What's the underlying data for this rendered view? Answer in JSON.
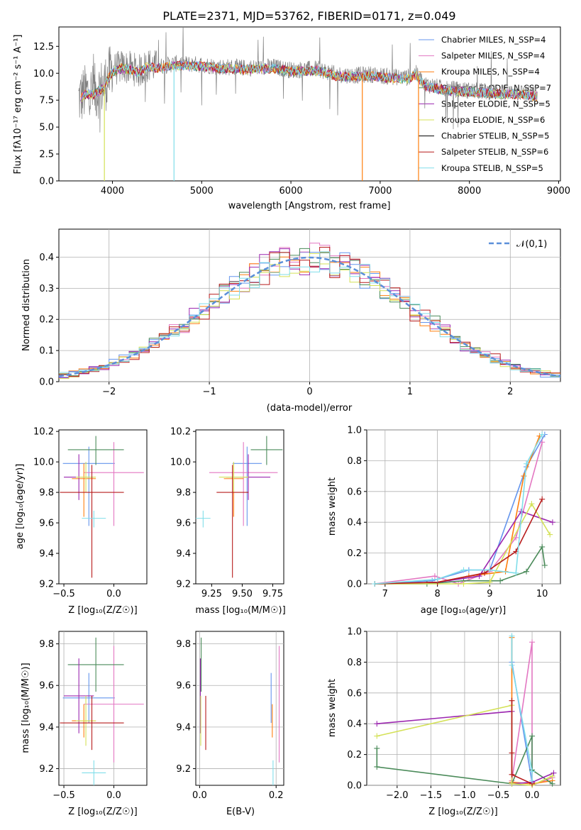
{
  "figure": {
    "title": "PLATE=2371, MJD=53762, FIBERID=0171, z=0.049"
  },
  "chart_data": [
    {
      "id": "spectrum",
      "type": "line",
      "xlabel": "wavelength [Angstrom, rest frame]",
      "ylabel": "Flux [fλ10⁻¹⁷ erg cm⁻² s⁻¹ A⁻¹]",
      "xlim": [
        3400,
        9020
      ],
      "ylim": [
        0,
        14.3
      ],
      "xticks": [
        4000,
        5000,
        6000,
        7000,
        8000,
        9000
      ],
      "yticks": [
        0.0,
        2.5,
        5.0,
        7.5,
        10.0,
        12.5
      ],
      "legend_position": "top-right",
      "series": [
        {
          "name": "Chabrier MILES, N_SSP=4",
          "color": "#6495ed"
        },
        {
          "name": "Salpeter MILES, N_SSP=4",
          "color": "#e377c2"
        },
        {
          "name": "Kroupa MILES, N_SSP=4",
          "color": "#ff7f0e"
        },
        {
          "name": "Chabrier ELODIE, N_SSP=7",
          "color": "#4b8b5a"
        },
        {
          "name": "Salpeter ELODIE, N_SSP=5",
          "color": "#9c27b0"
        },
        {
          "name": "Kroupa ELODIE, N_SSP=6",
          "color": "#d4e157"
        },
        {
          "name": "Chabrier STELIB, N_SSP=5",
          "color": "#000000"
        },
        {
          "name": "Salpeter STELIB, N_SSP=6",
          "color": "#b71c1c"
        },
        {
          "name": "Kroupa STELIB, N_SSP=5",
          "color": "#80deea"
        }
      ],
      "data_color": "#808080",
      "continuum": {
        "x": [
          3620,
          3700,
          3800,
          3900,
          4000,
          4100,
          4200,
          4300,
          4400,
          4500,
          4700,
          5000,
          5200,
          5500,
          5800,
          6000,
          6300,
          6500,
          6700,
          6900,
          7100,
          7300,
          7400,
          7500,
          7700,
          8000,
          8200,
          8400,
          8600,
          8750
        ],
        "y": [
          7.6,
          8.2,
          8.2,
          8.8,
          10.3,
          10.6,
          10.5,
          10.2,
          10.8,
          10.6,
          10.9,
          10.8,
          10.6,
          10.5,
          10.6,
          10.3,
          10.4,
          9.9,
          9.8,
          9.9,
          9.7,
          9.6,
          10.0,
          9.0,
          8.6,
          8.4,
          8.3,
          8.2,
          8.2,
          8.0
        ]
      }
    },
    {
      "id": "residuals",
      "type": "line",
      "xlabel": "(data-model)/error",
      "ylabel": "Normed distribution",
      "xlim": [
        -2.5,
        2.5
      ],
      "ylim": [
        0,
        0.49
      ],
      "xticks": [
        -2,
        -1,
        0,
        1,
        2
      ],
      "yticks": [
        0.0,
        0.1,
        0.2,
        0.3,
        0.4
      ],
      "legend": "𝒩(0,1)",
      "legend_position": "top-right",
      "bins": {
        "start": -2.5,
        "width": 0.1,
        "count": 50
      }
    },
    {
      "id": "age-vs-Z",
      "type": "scatter",
      "xlabel": "Z [log₁₀(Z/Z☉)]",
      "ylabel": "age  [log₁₀(age/yr)]",
      "xlim": [
        -0.55,
        0.33
      ],
      "ylim": [
        9.2,
        10.21
      ],
      "xticks": [
        -0.5,
        0.0
      ],
      "yticks": [
        9.2,
        9.4,
        9.6,
        9.8,
        10.0,
        10.2
      ]
    },
    {
      "id": "age-vs-mass",
      "type": "scatter",
      "xlabel": "mass [log₁₀(M/M☉)]",
      "ylabel": "",
      "xlim": [
        9.12,
        9.84
      ],
      "ylim": [
        9.2,
        10.21
      ],
      "xticks": [
        9.25,
        9.5,
        9.75
      ],
      "yticks": [
        9.2,
        9.4,
        9.6,
        9.8,
        10.0,
        10.2
      ]
    },
    {
      "id": "massweight-vs-age",
      "type": "line",
      "xlabel": "age  [log₁₀(age/yr)]",
      "ylabel": "mass weight",
      "xlim": [
        6.65,
        10.35
      ],
      "ylim": [
        0,
        1.0
      ],
      "xticks": [
        7,
        8,
        9,
        10
      ],
      "yticks": [
        0.0,
        0.2,
        0.4,
        0.6,
        0.8,
        1.0
      ]
    },
    {
      "id": "mass-vs-Z",
      "type": "scatter",
      "xlabel": "Z [log₁₀(Z/Z☉)]",
      "ylabel": "mass [log₁₀(M/M☉)]",
      "xlim": [
        -0.55,
        0.33
      ],
      "ylim": [
        9.12,
        9.86
      ],
      "xticks": [
        -0.5,
        0.0
      ],
      "yticks": [
        9.2,
        9.4,
        9.6,
        9.8
      ]
    },
    {
      "id": "mass-vs-ebv",
      "type": "scatter",
      "xlabel": "E(B-V)",
      "ylabel": "",
      "xlim": [
        -0.01,
        0.22
      ],
      "ylim": [
        9.12,
        9.86
      ],
      "xticks": [
        0.0,
        0.2
      ],
      "yticks": [
        9.2,
        9.4,
        9.6,
        9.8
      ]
    },
    {
      "id": "massweight-vs-Z",
      "type": "line",
      "xlabel": "Z [log₁₀(Z/Z☉)]",
      "ylabel": "mass weight",
      "xlim": [
        -2.45,
        0.42
      ],
      "ylim": [
        0,
        1.0
      ],
      "xticks": [
        -2.0,
        -1.5,
        -1.0,
        -0.5,
        0.0
      ],
      "yticks": [
        0.0,
        0.2,
        0.4,
        0.6,
        0.8,
        1.0
      ]
    }
  ],
  "models": [
    {
      "color": "#6495ed",
      "Z": -0.25,
      "Zerr": 0.26,
      "age": 9.99,
      "ageerr": [
        0.41,
        0.11
      ],
      "mass": 9.54,
      "masserr": 0.12,
      "ebv": 0.187,
      "age_mw": [
        [
          6.8,
          0.0
        ],
        [
          7.9,
          0.02
        ],
        [
          8.6,
          0.09
        ],
        [
          9.0,
          0.09
        ],
        [
          9.7,
          0.76
        ],
        [
          10.05,
          0.97
        ]
      ],
      "Z_mw": [
        [
          -0.3,
          0.97
        ],
        [
          -0.3,
          0.8
        ],
        [
          0.0,
          0.02
        ],
        [
          0.0,
          0.0
        ]
      ]
    },
    {
      "color": "#e377c2",
      "Z": 0.0,
      "Zerr": 0.3,
      "age": 9.93,
      "ageerr": [
        0.35,
        0.2
      ],
      "mass": 9.51,
      "masserr": 0.28,
      "ebv": 0.208,
      "age_mw": [
        [
          6.8,
          0.0
        ],
        [
          7.95,
          0.05
        ],
        [
          8.4,
          0.0
        ],
        [
          9.0,
          0.08
        ],
        [
          9.5,
          0.3
        ],
        [
          10.0,
          0.92
        ]
      ],
      "Z_mw": [
        [
          -0.3,
          0.03
        ],
        [
          0.0,
          0.93
        ],
        [
          0.0,
          0.0
        ],
        [
          0.3,
          0.05
        ]
      ]
    },
    {
      "color": "#ff7f0e",
      "Z": -0.3,
      "Zerr": 0.12,
      "age": 9.89,
      "ageerr": [
        0.25,
        0.1
      ],
      "mass": 9.43,
      "masserr": 0.08,
      "ebv": 0.19,
      "age_mw": [
        [
          6.8,
          0.0
        ],
        [
          8.0,
          0.01
        ],
        [
          8.6,
          0.05
        ],
        [
          9.3,
          0.08
        ],
        [
          9.65,
          0.7
        ],
        [
          9.95,
          0.96
        ]
      ],
      "Z_mw": [
        [
          -0.3,
          0.96
        ],
        [
          -0.3,
          0.02
        ],
        [
          0.0,
          0.01
        ],
        [
          0.3,
          0.03
        ]
      ]
    },
    {
      "color": "#4b8b5a",
      "Z": -0.18,
      "Zerr": 0.28,
      "age": 10.08,
      "ageerr": [
        0.1,
        0.09
      ],
      "mass": 9.7,
      "masserr": 0.13,
      "ebv": 0.004,
      "age_mw": [
        [
          6.8,
          0.0
        ],
        [
          7.8,
          0.0
        ],
        [
          8.5,
          0.02
        ],
        [
          9.2,
          0.02
        ],
        [
          9.7,
          0.08
        ],
        [
          10.0,
          0.24
        ],
        [
          10.05,
          0.12
        ]
      ],
      "Z_mw": [
        [
          -2.3,
          0.24
        ],
        [
          -2.3,
          0.12
        ],
        [
          -0.3,
          0.01
        ],
        [
          0.0,
          0.32
        ],
        [
          0.0,
          0.1
        ],
        [
          0.3,
          0.01
        ]
      ]
    },
    {
      "color": "#9c27b0",
      "Z": -0.35,
      "Zerr": 0.15,
      "age": 9.9,
      "ageerr": [
        0.15,
        0.15
      ],
      "mass": 9.55,
      "masserr": 0.18,
      "ebv": 0.002,
      "age_mw": [
        [
          6.8,
          0.0
        ],
        [
          8.0,
          0.01
        ],
        [
          8.8,
          0.05
        ],
        [
          9.6,
          0.47
        ],
        [
          10.2,
          0.4
        ]
      ],
      "Z_mw": [
        [
          -2.3,
          0.4
        ],
        [
          -0.3,
          0.48
        ],
        [
          -0.3,
          0.01
        ],
        [
          0.0,
          0.02
        ],
        [
          0.32,
          0.08
        ]
      ]
    },
    {
      "color": "#d4e157",
      "Z": -0.28,
      "Zerr": 0.1,
      "age": 9.9,
      "ageerr": [
        0.1,
        0.1
      ],
      "mass": 9.43,
      "masserr": 0.12,
      "ebv": 0.003,
      "age_mw": [
        [
          6.8,
          0.0
        ],
        [
          8.5,
          0.0
        ],
        [
          9.0,
          0.01
        ],
        [
          9.8,
          0.52
        ],
        [
          10.15,
          0.32
        ]
      ],
      "Z_mw": [
        [
          -2.3,
          0.32
        ],
        [
          -0.3,
          0.52
        ],
        [
          -0.3,
          0.01
        ],
        [
          0.0,
          0.0
        ],
        [
          0.3,
          0.06
        ]
      ]
    },
    {
      "color": "#b71c1c",
      "Z": -0.22,
      "Zerr": 0.32,
      "age": 9.8,
      "ageerr": [
        0.56,
        0.18
      ],
      "mass": 9.42,
      "masserr": 0.13,
      "ebv": 0.016,
      "age_mw": [
        [
          6.8,
          0.0
        ],
        [
          8.0,
          0.01
        ],
        [
          8.9,
          0.07
        ],
        [
          9.5,
          0.21
        ],
        [
          10.0,
          0.55
        ]
      ],
      "Z_mw": [
        [
          -0.3,
          0.55
        ],
        [
          -0.3,
          0.21
        ],
        [
          -0.3,
          0.07
        ],
        [
          0.0,
          0.01
        ]
      ]
    },
    {
      "color": "#80deea",
      "Z": -0.2,
      "Zerr": 0.12,
      "age": 9.63,
      "ageerr": [
        0.06,
        0.05
      ],
      "mass": 9.18,
      "masserr": 0.06,
      "ebv": 0.192,
      "age_mw": [
        [
          6.8,
          0.0
        ],
        [
          8.0,
          0.03
        ],
        [
          8.5,
          0.09
        ],
        [
          9.0,
          0.09
        ],
        [
          9.5,
          0.07
        ],
        [
          9.7,
          0.78
        ],
        [
          10.0,
          0.97
        ]
      ],
      "Z_mw": [
        [
          -0.3,
          0.97
        ],
        [
          -0.3,
          0.78
        ],
        [
          0.0,
          0.09
        ],
        [
          0.0,
          0.03
        ]
      ]
    }
  ]
}
